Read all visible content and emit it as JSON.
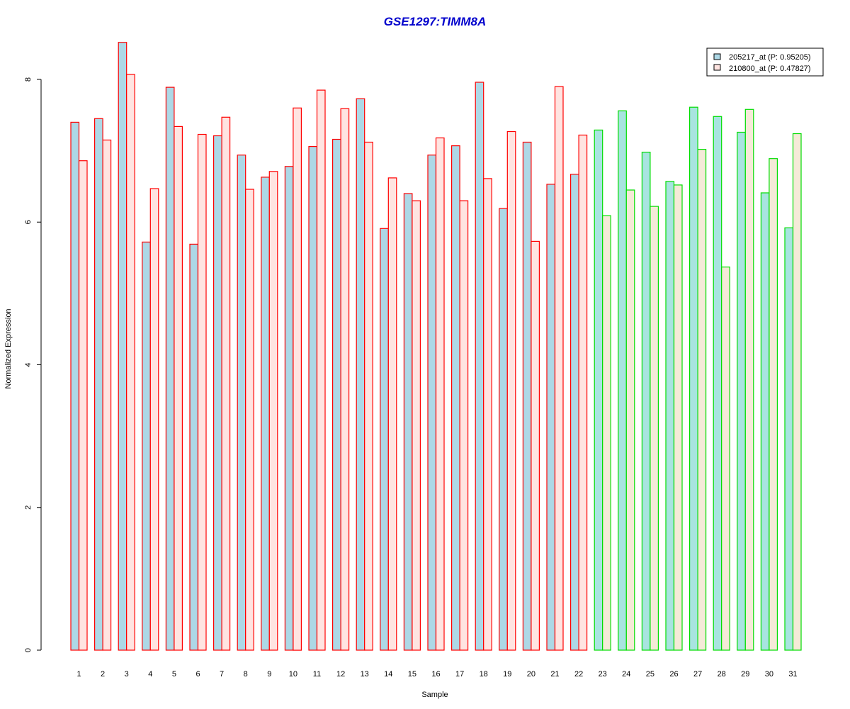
{
  "colors": {
    "title": "#0000CC",
    "group1_border": "#FF0000",
    "group2_border": "#00DD00",
    "series1_fill_group1": "#ADD8E6",
    "series2_fill_group1": "#FFE4E1",
    "series1_fill_group2": "#A8E4E0",
    "series2_fill_group2": "#F5EAD8"
  },
  "chart_data": {
    "type": "bar",
    "title": "GSE1297:TIMM8A",
    "xlabel": "Sample",
    "ylabel": "Normalized Expression",
    "ylim": [
      0,
      8.5
    ],
    "yticks": [
      0,
      2,
      4,
      6,
      8
    ],
    "grid": false,
    "legend_position": "top-right",
    "categories": [
      "1",
      "2",
      "3",
      "4",
      "5",
      "6",
      "7",
      "8",
      "9",
      "10",
      "11",
      "12",
      "13",
      "14",
      "15",
      "16",
      "17",
      "18",
      "19",
      "20",
      "21",
      "22",
      "23",
      "24",
      "25",
      "26",
      "27",
      "28",
      "29",
      "30",
      "31"
    ],
    "group1_count": 22,
    "series": [
      {
        "name": "205217_at (P: 0.95205)",
        "values": [
          7.4,
          7.45,
          8.52,
          5.72,
          7.89,
          5.69,
          7.21,
          6.94,
          6.63,
          6.78,
          7.06,
          7.16,
          7.73,
          5.91,
          6.4,
          6.94,
          7.07,
          7.96,
          6.19,
          7.12,
          6.53,
          6.67,
          7.29,
          7.56,
          6.98,
          6.57,
          7.61,
          7.48,
          7.26,
          6.41,
          5.92
        ]
      },
      {
        "name": "210800_at (P: 0.47827)",
        "values": [
          6.86,
          7.15,
          8.07,
          6.47,
          7.34,
          7.23,
          7.47,
          6.46,
          6.71,
          7.6,
          7.85,
          7.59,
          7.12,
          6.62,
          6.3,
          7.18,
          6.3,
          6.61,
          7.27,
          5.73,
          7.9,
          7.22,
          6.09,
          6.45,
          6.22,
          6.52,
          7.02,
          5.37,
          7.58,
          6.89,
          7.24
        ]
      }
    ]
  }
}
